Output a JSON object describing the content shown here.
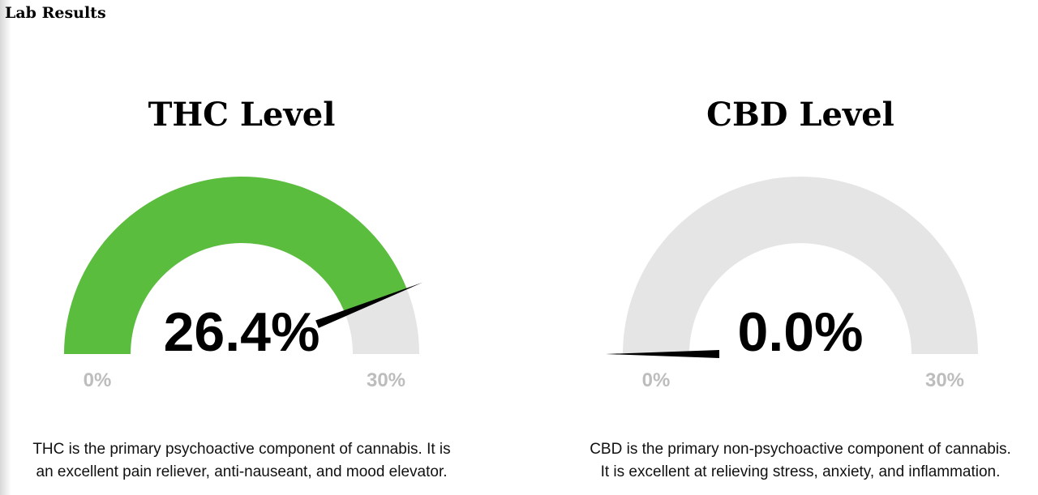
{
  "header": {
    "title": "Lab Results"
  },
  "gauges": [
    {
      "title": "THC Level",
      "value": 26.4,
      "value_label": "26.4%",
      "color": "#5bbd3e",
      "track_color": "#e6e5e6",
      "ticks": [
        {
          "value": 0,
          "label": "0%"
        },
        {
          "value": 30,
          "label": "30%"
        }
      ],
      "description": [
        "THC is the primary psychoactive component of cannabis. It is",
        "an excellent pain reliever, anti-nauseant, and mood elevator."
      ]
    },
    {
      "title": "CBD Level",
      "value": 0.0,
      "value_label": "0.0%",
      "color": "#5bbd3e",
      "track_color": "#e6e5e6",
      "ticks": [
        {
          "value": 0,
          "label": "0%"
        },
        {
          "value": 30,
          "label": "30%"
        }
      ],
      "description": [
        "CBD is the primary non-psychoactive component of cannabis.",
        "It is excellent at relieving stress, anxiety, and inflammation."
      ]
    }
  ]
}
